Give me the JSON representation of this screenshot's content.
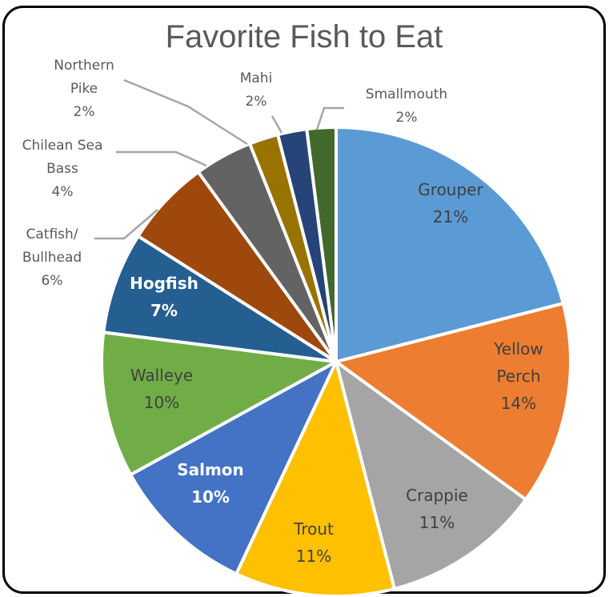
{
  "chart_data": {
    "type": "pie",
    "title": "Favorite Fish to Eat",
    "slices": [
      {
        "label": "Grouper",
        "display": [
          "Grouper",
          "21%"
        ],
        "percent": 21,
        "color": "#5B9BD5",
        "label_color": "#404040"
      },
      {
        "label": "Yellow Perch",
        "display": [
          "Yellow",
          "Perch",
          "14%"
        ],
        "percent": 14,
        "color": "#ED7D31",
        "label_color": "#404040"
      },
      {
        "label": "Crappie",
        "display": [
          "Crappie",
          "11%"
        ],
        "percent": 11,
        "color": "#A5A5A5",
        "label_color": "#404040"
      },
      {
        "label": "Trout",
        "display": [
          "Trout",
          "11%"
        ],
        "percent": 11,
        "color": "#FFC000",
        "label_color": "#404040"
      },
      {
        "label": "Salmon",
        "display": [
          "Salmon",
          "10%"
        ],
        "percent": 10,
        "color": "#4472C4",
        "label_color": "#FFFFFF",
        "bold": true
      },
      {
        "label": "Walleye",
        "display": [
          "Walleye",
          "10%"
        ],
        "percent": 10,
        "color": "#70AD47",
        "label_color": "#404040"
      },
      {
        "label": "Hogfish",
        "display": [
          "Hogfish",
          "7%"
        ],
        "percent": 7,
        "color": "#255E91",
        "label_color": "#FFFFFF",
        "bold": true
      },
      {
        "label": "Catfish/Bullhead",
        "display": [
          "Catfish/",
          "Bullhead",
          "6%"
        ],
        "percent": 6,
        "color": "#9E480E",
        "outside": true
      },
      {
        "label": "Chilean Sea Bass",
        "display": [
          "Chilean Sea",
          "Bass",
          "4%"
        ],
        "percent": 4,
        "color": "#636363",
        "outside": true
      },
      {
        "label": "Northern Pike",
        "display": [
          "Northern",
          "Pike",
          "2%"
        ],
        "percent": 2,
        "color": "#997300",
        "outside": true
      },
      {
        "label": "Mahi",
        "display": [
          "Mahi",
          "2%"
        ],
        "percent": 2,
        "color": "#264478",
        "outside": true
      },
      {
        "label": "Smallmouth",
        "display": [
          "Smallmouth",
          "2%"
        ],
        "percent": 2,
        "color": "#43682B",
        "outside": true
      }
    ]
  }
}
